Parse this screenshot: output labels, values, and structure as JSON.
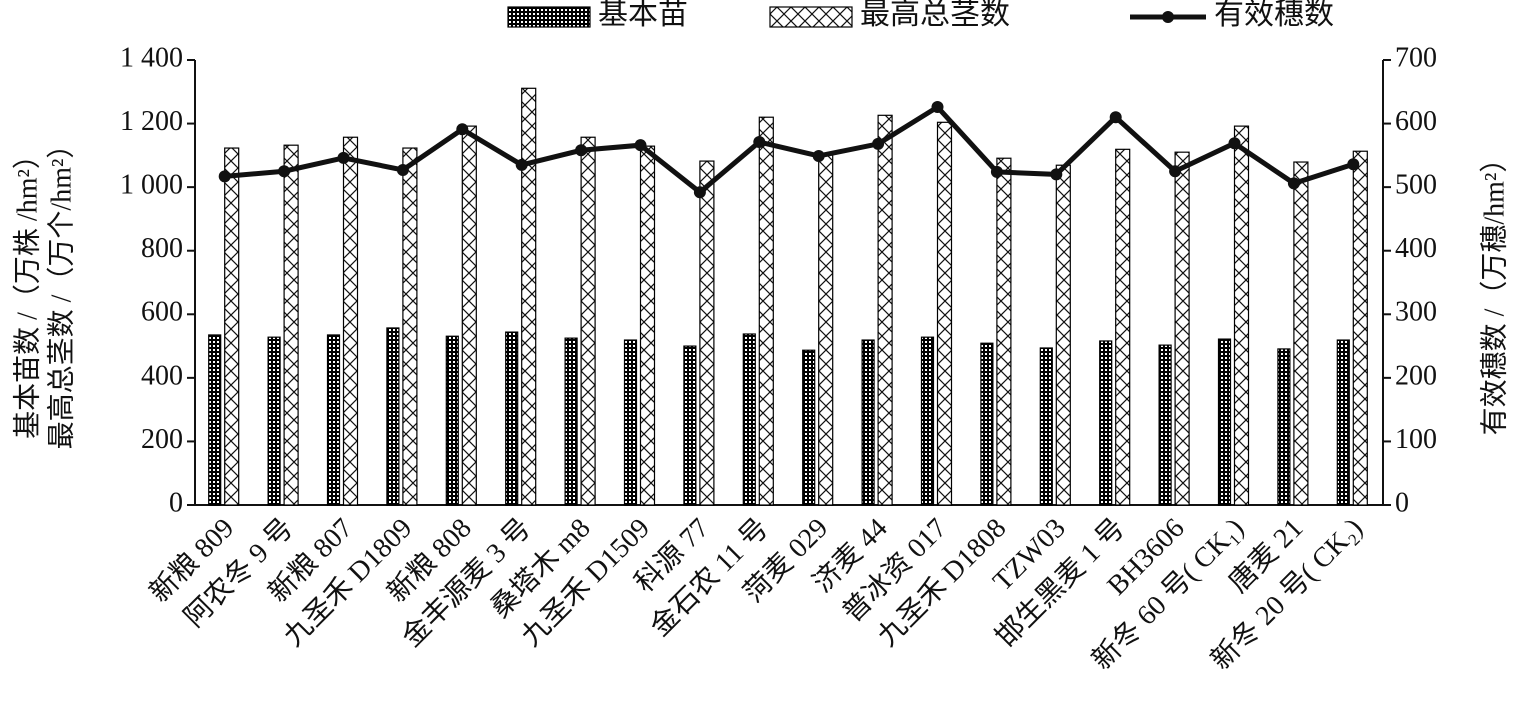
{
  "chart_data": {
    "type": "bar-line",
    "categories": [
      "新粮 809",
      "阿农冬 9 号",
      "新粮 807",
      "九圣禾 D1809",
      "新粮 808",
      "金丰源麦 3 号",
      "桑塔木 m8",
      "九圣禾 D1509",
      "科源 77",
      "金石农 11 号",
      "菏麦 029",
      "济麦 44",
      "普冰资 017",
      "九圣禾 D1808",
      "TZW03",
      "邯生黑麦 1 号",
      "BH3606",
      "新冬 60 号( CK₁)",
      "唐麦 21",
      "新冬 20 号( CK₂)"
    ],
    "series": [
      {
        "name": "基本苗",
        "color": "#000000",
        "kind": "bar",
        "values": [
          535,
          528,
          535,
          557,
          531,
          544,
          525,
          519,
          500,
          538,
          487,
          519,
          528,
          509,
          494,
          516,
          503,
          522,
          491,
          519
        ]
      },
      {
        "name": "最高总茎数",
        "color": "#000000",
        "kind": "bar",
        "values": [
          1123,
          1132,
          1157,
          1123,
          1192,
          1311,
          1157,
          1129,
          1082,
          1220,
          1101,
          1226,
          1204,
          1091,
          1069,
          1119,
          1110,
          1192,
          1079,
          1113
        ]
      },
      {
        "name": "有效穗数",
        "color": "#111111",
        "kind": "line",
        "axis": "y2",
        "values": [
          517,
          525,
          546,
          527,
          591,
          535,
          558,
          566,
          492,
          571,
          549,
          568,
          626,
          524,
          520,
          610,
          525,
          569,
          506,
          536
        ]
      }
    ],
    "ylabel": [
      "基本苗数 /（万株 /hm²）",
      "最高总茎数 /（万个/hm²）"
    ],
    "y2label": "有效穗数 /（万穗/hm²）",
    "ylim": [
      0,
      1400
    ],
    "yticks": [
      0,
      200,
      400,
      600,
      800,
      {
        "value": 1000,
        "label": "1 000"
      },
      {
        "value": 1200,
        "label": "1 200"
      },
      {
        "value": 1400,
        "label": "1 400"
      }
    ],
    "y2lim": [
      0,
      700
    ],
    "y2ticks": [
      0,
      100,
      200,
      300,
      400,
      500,
      600,
      700
    ]
  }
}
